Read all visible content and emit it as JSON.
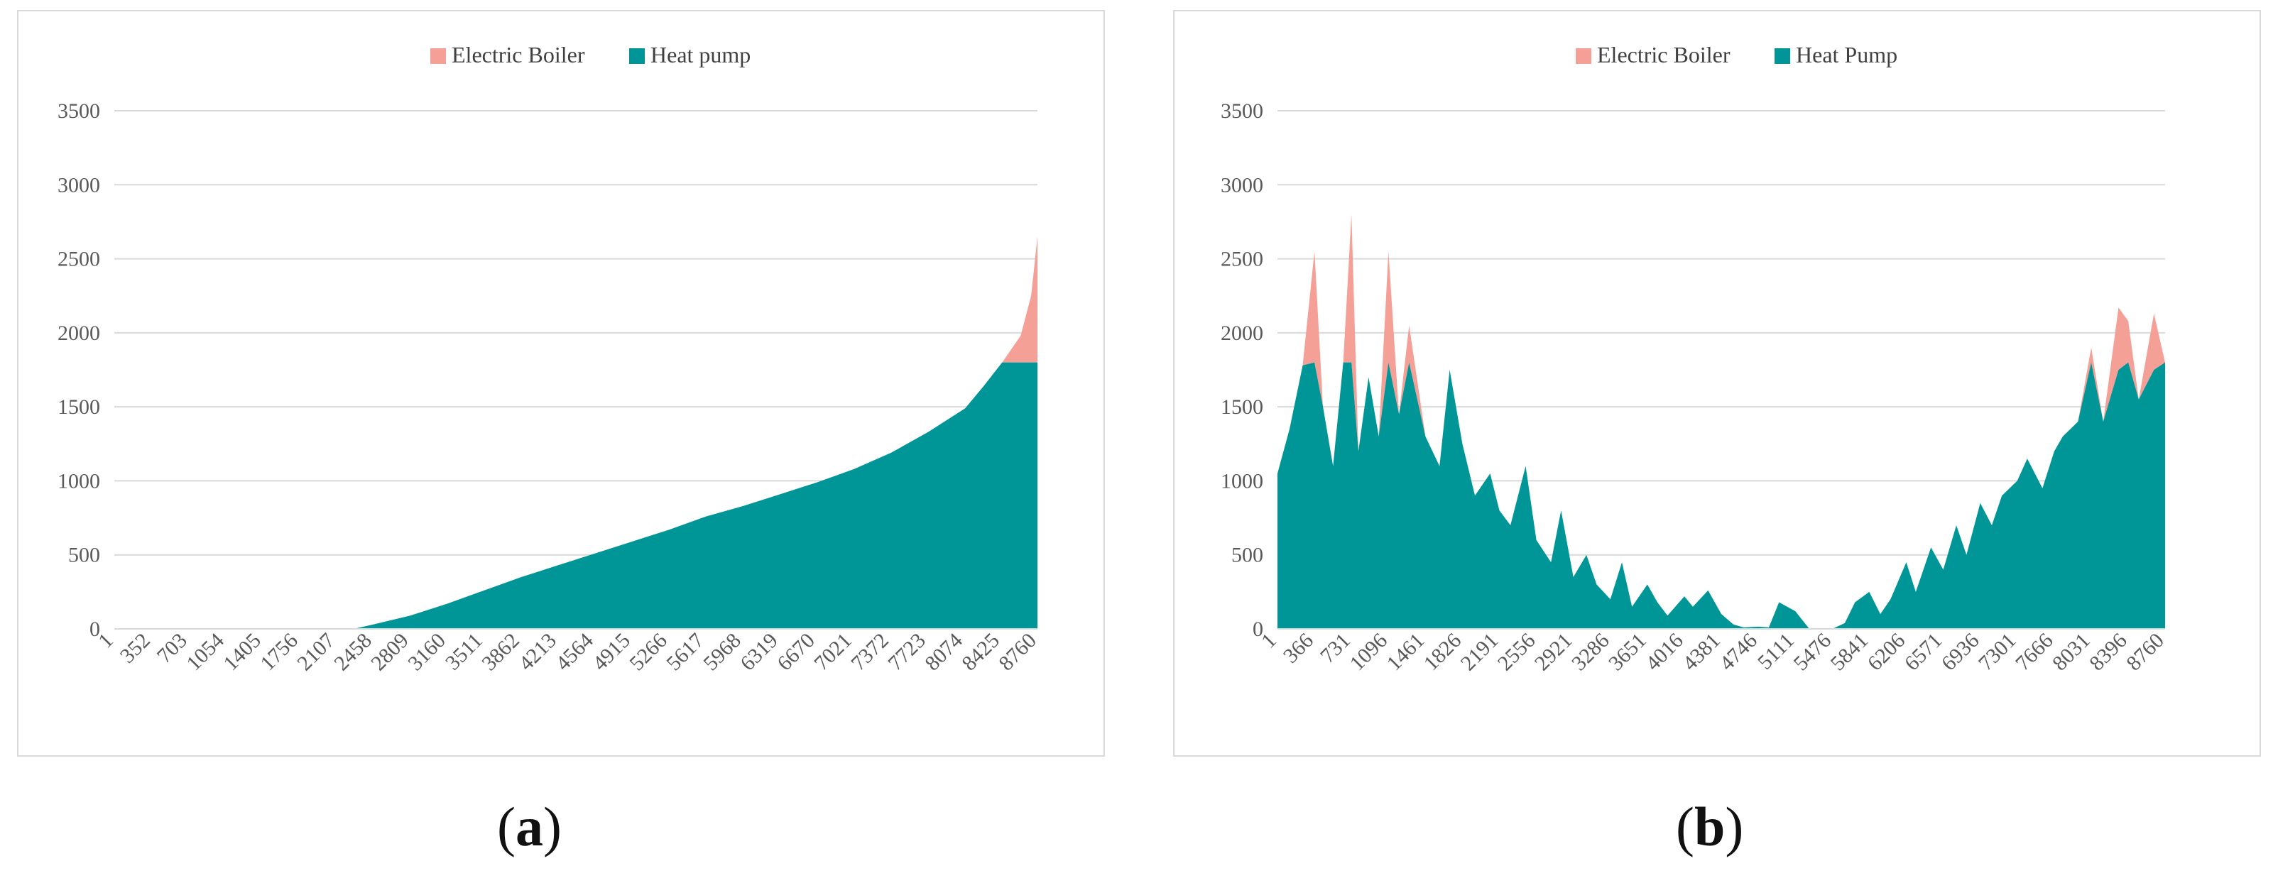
{
  "chart_data": [
    {
      "type": "area",
      "stacked": true,
      "panel_label": "a",
      "title": "",
      "xlabel": "",
      "ylabel": "",
      "ylim": [
        0,
        3500
      ],
      "yticks": [
        "0",
        "500",
        "1000",
        "1500",
        "2000",
        "2500",
        "3000",
        "3500"
      ],
      "xticks": [
        "1",
        "352",
        "703",
        "1054",
        "1405",
        "1756",
        "2107",
        "2458",
        "2809",
        "3160",
        "3511",
        "3862",
        "4213",
        "4564",
        "4915",
        "5266",
        "5617",
        "5968",
        "6319",
        "6670",
        "7021",
        "7372",
        "7723",
        "8074",
        "8425",
        "8760"
      ],
      "grid": true,
      "legend_position": "top-center",
      "x": [
        1,
        2107,
        2300,
        2458,
        2809,
        3160,
        3511,
        3862,
        4213,
        4564,
        4915,
        5266,
        5617,
        5968,
        6319,
        6670,
        7021,
        7372,
        7723,
        8074,
        8250,
        8425,
        8600,
        8700,
        8760
      ],
      "series": [
        {
          "name": "Heat pump",
          "color": "#009697",
          "values": [
            0,
            0,
            5,
            30,
            90,
            170,
            260,
            350,
            430,
            510,
            590,
            670,
            760,
            830,
            910,
            990,
            1080,
            1190,
            1330,
            1490,
            1640,
            1800,
            1800,
            1800,
            1800
          ]
        },
        {
          "name": "Electric Boiler",
          "color": "#f5a097",
          "values": [
            0,
            0,
            0,
            0,
            0,
            0,
            0,
            0,
            0,
            0,
            0,
            0,
            0,
            0,
            0,
            0,
            0,
            0,
            0,
            0,
            0,
            0,
            180,
            450,
            850
          ]
        }
      ]
    },
    {
      "type": "area",
      "stacked": true,
      "panel_label": "b",
      "title": "",
      "xlabel": "",
      "ylabel": "",
      "ylim": [
        0,
        3500
      ],
      "yticks": [
        "0",
        "500",
        "1000",
        "1500",
        "2000",
        "2500",
        "3000",
        "3500"
      ],
      "xticks": [
        "1",
        "366",
        "731",
        "1096",
        "1461",
        "1826",
        "2191",
        "2556",
        "2921",
        "3286",
        "3651",
        "4016",
        "4381",
        "4746",
        "5111",
        "5476",
        "5841",
        "6206",
        "6571",
        "6936",
        "7301",
        "7666",
        "8031",
        "8396",
        "8760"
      ],
      "grid": true,
      "legend_position": "top-center",
      "x": [
        1,
        120,
        250,
        366,
        450,
        550,
        650,
        731,
        800,
        900,
        1000,
        1096,
        1200,
        1300,
        1461,
        1600,
        1700,
        1826,
        1950,
        2100,
        2191,
        2300,
        2450,
        2556,
        2700,
        2800,
        2921,
        3050,
        3150,
        3286,
        3400,
        3500,
        3651,
        3750,
        3850,
        4016,
        4100,
        4250,
        4381,
        4500,
        4600,
        4746,
        4850,
        4950,
        5111,
        5250,
        5350,
        5476,
        5600,
        5700,
        5841,
        5950,
        6050,
        6206,
        6300,
        6450,
        6571,
        6700,
        6800,
        6936,
        7050,
        7150,
        7301,
        7400,
        7550,
        7666,
        7750,
        7900,
        8031,
        8150,
        8300,
        8396,
        8500,
        8650,
        8760
      ],
      "series": [
        {
          "name": "Heat Pump",
          "color": "#009697",
          "values": [
            1050,
            1350,
            1780,
            1800,
            1500,
            1100,
            1800,
            1800,
            1200,
            1700,
            1300,
            1800,
            1450,
            1800,
            1300,
            1100,
            1750,
            1250,
            900,
            1050,
            800,
            700,
            1100,
            600,
            450,
            800,
            350,
            500,
            300,
            200,
            450,
            150,
            300,
            180,
            90,
            220,
            150,
            260,
            100,
            30,
            10,
            15,
            10,
            180,
            120,
            0,
            0,
            0,
            40,
            180,
            250,
            100,
            200,
            450,
            250,
            550,
            400,
            700,
            500,
            850,
            700,
            900,
            1000,
            1150,
            950,
            1200,
            1300,
            1400,
            1800,
            1400,
            1750,
            1800,
            1550,
            1750,
            1800
          ]
        },
        {
          "name": "Electric Boiler",
          "color": "#f5a097",
          "values": [
            0,
            0,
            0,
            750,
            0,
            0,
            0,
            1000,
            0,
            0,
            0,
            750,
            0,
            250,
            0,
            0,
            0,
            0,
            0,
            0,
            0,
            0,
            0,
            0,
            0,
            0,
            0,
            0,
            0,
            0,
            0,
            0,
            0,
            0,
            0,
            0,
            0,
            0,
            0,
            0,
            0,
            0,
            0,
            0,
            0,
            0,
            0,
            0,
            0,
            0,
            0,
            0,
            0,
            0,
            0,
            0,
            0,
            0,
            0,
            0,
            0,
            0,
            0,
            0,
            0,
            0,
            0,
            0,
            100,
            0,
            420,
            280,
            0,
            380,
            0
          ]
        }
      ]
    }
  ],
  "captions": {
    "a": "a",
    "b": "b"
  }
}
